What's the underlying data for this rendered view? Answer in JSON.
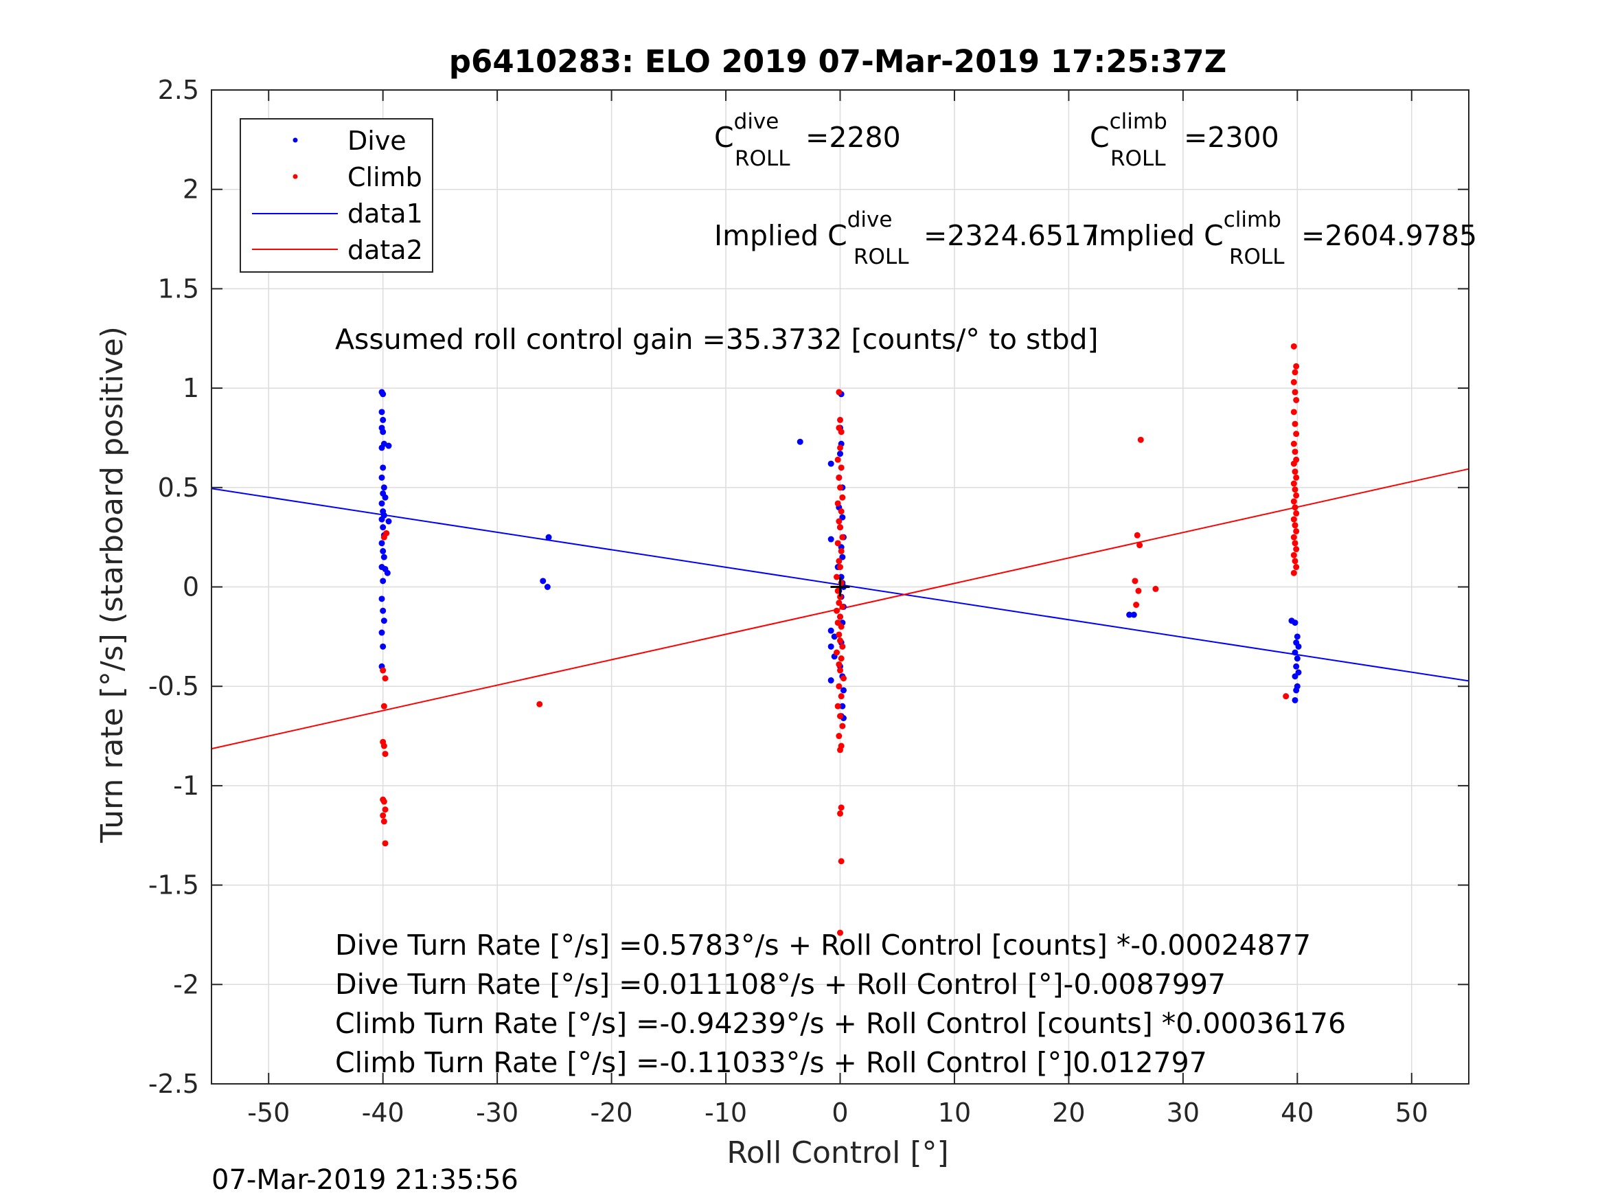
{
  "chart_data": {
    "type": "scatter",
    "title": "p6410283: ELO 2019 07-Mar-2019 17:25:37Z",
    "xlabel": "Roll Control [°]",
    "ylabel": "Turn rate [°/s] (starboard positive)",
    "xlim": [
      -55,
      55
    ],
    "ylim": [
      -2.5,
      2.5
    ],
    "xticks": [
      -50,
      -40,
      -30,
      -20,
      -10,
      0,
      10,
      20,
      30,
      40,
      50
    ],
    "xtick_labels": [
      "-50",
      "-40",
      "-30",
      "-20",
      "-10",
      "0",
      "10",
      "20",
      "30",
      "40",
      "50"
    ],
    "yticks": [
      -2.5,
      -2,
      -1.5,
      -1,
      -0.5,
      0,
      0.5,
      1,
      1.5,
      2,
      2.5
    ],
    "ytick_labels": [
      "-2.5",
      "-2",
      "-1.5",
      "-1",
      "-0.5",
      "0",
      "0.5",
      "1",
      "1.5",
      "2",
      "2.5"
    ],
    "grid": true,
    "legend_position": "top-left",
    "legend": [
      "Dive",
      "Climb",
      "data1",
      "data2"
    ],
    "colors": {
      "dive": "#0000ff",
      "climb": "#ff0000",
      "axis": "#262626",
      "grid": "#dcdcdc"
    },
    "series": [
      {
        "name": "Dive",
        "type": "scatter",
        "color": "#0000ff",
        "points": [
          [
            -40.1,
            0.98
          ],
          [
            -40.0,
            0.97
          ],
          [
            -40.1,
            0.88
          ],
          [
            -40.0,
            0.84
          ],
          [
            -40.1,
            0.8
          ],
          [
            -40.0,
            0.78
          ],
          [
            -39.9,
            0.72
          ],
          [
            -40.1,
            0.7
          ],
          [
            -39.5,
            0.71
          ],
          [
            -40.0,
            0.6
          ],
          [
            -40.1,
            0.55
          ],
          [
            -39.9,
            0.5
          ],
          [
            -40.0,
            0.47
          ],
          [
            -39.8,
            0.45
          ],
          [
            -40.1,
            0.42
          ],
          [
            -40.0,
            0.38
          ],
          [
            -39.9,
            0.36
          ],
          [
            -40.1,
            0.34
          ],
          [
            -39.5,
            0.33
          ],
          [
            -40.0,
            0.3
          ],
          [
            -39.9,
            0.26
          ],
          [
            -40.1,
            0.22
          ],
          [
            -40.0,
            0.18
          ],
          [
            -39.9,
            0.15
          ],
          [
            -40.1,
            0.1
          ],
          [
            -39.8,
            0.09
          ],
          [
            -39.6,
            0.07
          ],
          [
            -40.0,
            0.03
          ],
          [
            -40.1,
            -0.06
          ],
          [
            -40.0,
            -0.12
          ],
          [
            -39.9,
            -0.17
          ],
          [
            -40.1,
            -0.23
          ],
          [
            -40.0,
            -0.3
          ],
          [
            -40.1,
            -0.4
          ],
          [
            -25.5,
            0.25
          ],
          [
            -26.0,
            0.03
          ],
          [
            -25.6,
            0.0
          ],
          [
            -3.5,
            0.73
          ],
          [
            -0.8,
            0.62
          ],
          [
            0.1,
            0.97
          ],
          [
            0.0,
            0.8
          ],
          [
            0.1,
            0.72
          ],
          [
            0.0,
            0.67
          ],
          [
            -0.1,
            0.55
          ],
          [
            0.2,
            0.5
          ],
          [
            -0.1,
            0.4
          ],
          [
            0.2,
            0.35
          ],
          [
            0.0,
            0.3
          ],
          [
            0.3,
            0.25
          ],
          [
            -0.8,
            0.24
          ],
          [
            0.1,
            0.2
          ],
          [
            0.2,
            0.15
          ],
          [
            -0.2,
            0.1
          ],
          [
            0.1,
            0.05
          ],
          [
            0.2,
            0.02
          ],
          [
            0.3,
            0.0
          ],
          [
            -0.1,
            -0.02
          ],
          [
            0.1,
            -0.05
          ],
          [
            0.3,
            -0.1
          ],
          [
            0.0,
            -0.15
          ],
          [
            0.2,
            -0.18
          ],
          [
            -0.8,
            -0.22
          ],
          [
            -0.5,
            -0.25
          ],
          [
            0.1,
            -0.28
          ],
          [
            -0.8,
            -0.3
          ],
          [
            -0.5,
            -0.35
          ],
          [
            0.0,
            -0.4
          ],
          [
            0.2,
            -0.45
          ],
          [
            -0.8,
            -0.47
          ],
          [
            0.3,
            -0.52
          ],
          [
            0.2,
            -0.6
          ],
          [
            0.1,
            -0.65
          ],
          [
            0.3,
            -0.66
          ],
          [
            25.3,
            -0.14
          ],
          [
            25.7,
            -0.14
          ],
          [
            39.5,
            -0.17
          ],
          [
            39.8,
            -0.18
          ],
          [
            40.0,
            -0.25
          ],
          [
            39.9,
            -0.28
          ],
          [
            40.1,
            -0.3
          ],
          [
            39.8,
            -0.33
          ],
          [
            40.0,
            -0.36
          ],
          [
            39.9,
            -0.4
          ],
          [
            40.1,
            -0.43
          ],
          [
            39.8,
            -0.45
          ],
          [
            40.0,
            -0.5
          ],
          [
            39.9,
            -0.52
          ],
          [
            39.8,
            -0.57
          ]
        ]
      },
      {
        "name": "Climb",
        "type": "scatter",
        "color": "#ff0000",
        "points": [
          [
            -39.7,
            0.27
          ],
          [
            -39.9,
            0.25
          ],
          [
            -40.0,
            -0.42
          ],
          [
            -39.8,
            -0.46
          ],
          [
            -39.9,
            -0.6
          ],
          [
            -40.0,
            -0.78
          ],
          [
            -39.9,
            -0.8
          ],
          [
            -39.8,
            -0.84
          ],
          [
            -40.0,
            -1.07
          ],
          [
            -39.9,
            -1.08
          ],
          [
            -39.8,
            -1.12
          ],
          [
            -40.0,
            -1.15
          ],
          [
            -39.9,
            -1.18
          ],
          [
            -39.8,
            -1.29
          ],
          [
            -26.3,
            -0.59
          ],
          [
            -0.1,
            0.98
          ],
          [
            0.0,
            0.84
          ],
          [
            -0.1,
            0.8
          ],
          [
            0.1,
            0.78
          ],
          [
            0.0,
            0.7
          ],
          [
            -0.2,
            0.64
          ],
          [
            0.1,
            0.6
          ],
          [
            -0.1,
            0.55
          ],
          [
            0.0,
            0.5
          ],
          [
            0.2,
            0.45
          ],
          [
            -0.2,
            0.42
          ],
          [
            0.1,
            0.38
          ],
          [
            -0.1,
            0.33
          ],
          [
            0.0,
            0.3
          ],
          [
            0.2,
            0.25
          ],
          [
            -0.2,
            0.22
          ],
          [
            0.1,
            0.18
          ],
          [
            -0.1,
            0.13
          ],
          [
            0.0,
            0.1
          ],
          [
            -0.3,
            0.05
          ],
          [
            0.1,
            0.02
          ],
          [
            -0.2,
            -0.02
          ],
          [
            0.0,
            -0.05
          ],
          [
            -0.1,
            -0.08
          ],
          [
            0.2,
            -0.1
          ],
          [
            -0.3,
            -0.12
          ],
          [
            0.0,
            -0.15
          ],
          [
            -0.2,
            -0.18
          ],
          [
            0.1,
            -0.2
          ],
          [
            -0.1,
            -0.24
          ],
          [
            0.0,
            -0.27
          ],
          [
            0.2,
            -0.3
          ],
          [
            -0.3,
            -0.33
          ],
          [
            0.1,
            -0.36
          ],
          [
            -0.1,
            -0.39
          ],
          [
            0.0,
            -0.42
          ],
          [
            0.3,
            -0.46
          ],
          [
            -0.1,
            -0.5
          ],
          [
            0.1,
            -0.55
          ],
          [
            -0.2,
            -0.6
          ],
          [
            0.0,
            -0.65
          ],
          [
            0.2,
            -0.7
          ],
          [
            -0.1,
            -0.75
          ],
          [
            0.1,
            -0.8
          ],
          [
            0.0,
            -0.82
          ],
          [
            0.1,
            -1.11
          ],
          [
            0.0,
            -1.14
          ],
          [
            0.1,
            -1.38
          ],
          [
            0.0,
            -1.74
          ],
          [
            26.3,
            0.74
          ],
          [
            26.0,
            0.26
          ],
          [
            26.2,
            0.21
          ],
          [
            25.8,
            0.03
          ],
          [
            26.1,
            -0.02
          ],
          [
            27.6,
            -0.01
          ],
          [
            25.9,
            -0.09
          ],
          [
            39.7,
            1.21
          ],
          [
            39.9,
            1.11
          ],
          [
            39.8,
            1.08
          ],
          [
            39.7,
            1.03
          ],
          [
            39.8,
            0.98
          ],
          [
            39.9,
            0.94
          ],
          [
            39.7,
            0.88
          ],
          [
            39.8,
            0.82
          ],
          [
            39.9,
            0.77
          ],
          [
            39.7,
            0.72
          ],
          [
            39.8,
            0.68
          ],
          [
            39.9,
            0.64
          ],
          [
            39.7,
            0.62
          ],
          [
            39.8,
            0.58
          ],
          [
            39.9,
            0.55
          ],
          [
            39.7,
            0.52
          ],
          [
            39.8,
            0.49
          ],
          [
            39.9,
            0.46
          ],
          [
            39.7,
            0.43
          ],
          [
            39.8,
            0.4
          ],
          [
            39.9,
            0.37
          ],
          [
            39.7,
            0.34
          ],
          [
            39.8,
            0.31
          ],
          [
            39.9,
            0.28
          ],
          [
            39.7,
            0.25
          ],
          [
            39.8,
            0.22
          ],
          [
            39.9,
            0.19
          ],
          [
            39.7,
            0.16
          ],
          [
            39.8,
            0.13
          ],
          [
            39.9,
            0.1
          ],
          [
            39.7,
            0.07
          ],
          [
            39.0,
            -0.55
          ]
        ]
      },
      {
        "name": "data1",
        "type": "line",
        "color": "#0000ff",
        "points": [
          [
            -55,
            0.4949
          ],
          [
            55,
            -0.4731
          ]
        ]
      },
      {
        "name": "data2",
        "type": "line",
        "color": "#ff0000",
        "points": [
          [
            -55,
            -0.8141
          ],
          [
            55,
            0.5937
          ]
        ]
      }
    ],
    "center_marker": {
      "x": 0,
      "y": 0,
      "color": "#000000"
    },
    "annotations": {
      "c_dive_main": "C",
      "c_dive_sup": "dive",
      "c_dive_sub": "ROLL",
      "c_dive_value": "=2280",
      "c_climb_main": "C",
      "c_climb_sup": "climb",
      "c_climb_sub": "ROLL",
      "c_climb_value": "=2300",
      "implied_dive_prefix": "Implied C",
      "implied_dive_sup": "dive",
      "implied_dive_sub": "ROLL",
      "implied_dive_value": "=2324.6517",
      "implied_climb_prefix": "Implied C",
      "implied_climb_sup": "climb",
      "implied_climb_sub": "ROLL",
      "implied_climb_value": "=2604.9785",
      "gain": "Assumed roll control gain =35.3732 [counts/° to stbd]",
      "fit_lines": [
        "Dive Turn Rate [°/s] =0.5783°/s + Roll Control [counts] *-0.00024877",
        "Dive Turn Rate [°/s] =0.011108°/s + Roll Control [°]-0.0087997",
        "Climb Turn Rate [°/s] =-0.94239°/s + Roll Control [counts] *0.00036176",
        "Climb Turn Rate [°/s] =-0.11033°/s + Roll Control [°]0.012797"
      ]
    }
  },
  "timestamp": "07-Mar-2019 21:35:56"
}
